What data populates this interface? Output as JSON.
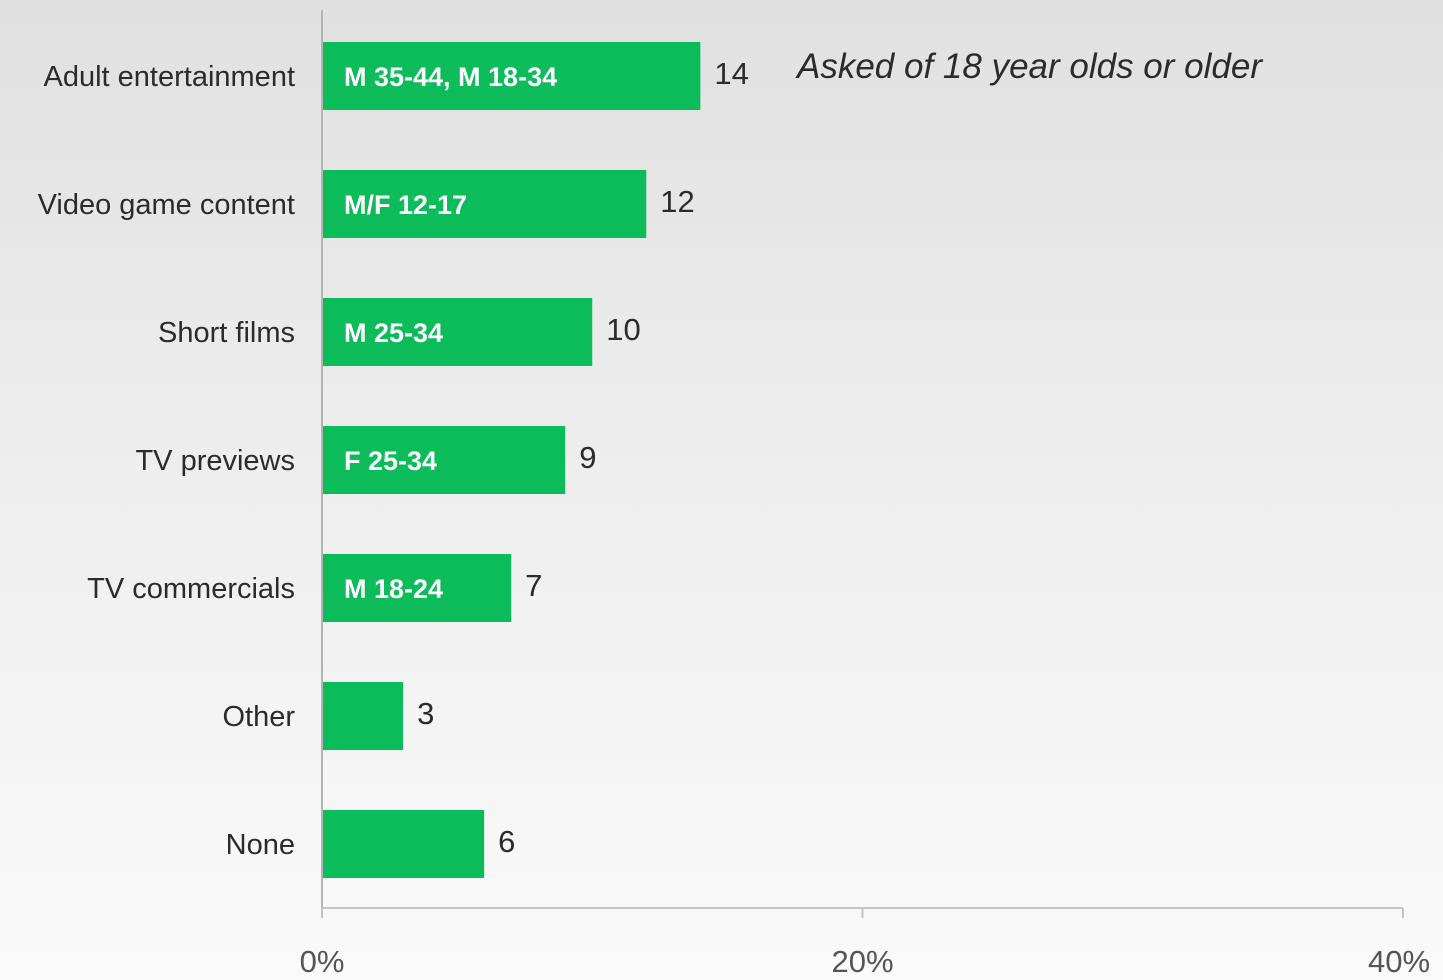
{
  "chart_data": {
    "type": "bar",
    "orientation": "horizontal",
    "categories": [
      "Adult entertainment",
      "Video game content",
      "Short films",
      "TV previews",
      "TV commercials",
      "Other",
      "None"
    ],
    "values": [
      14,
      12,
      10,
      9,
      7,
      3,
      6
    ],
    "bar_annotations": [
      "M 35-44, M 18-34",
      "M/F 12-17",
      "M 25-34",
      "F 25-34",
      "M 18-24",
      "",
      ""
    ],
    "x_ticks": [
      "0%",
      "20%",
      "40%"
    ],
    "xlim": [
      0,
      40
    ],
    "note": "Asked of 18 year olds or older",
    "bar_color": "#0cbb5a",
    "grid": false,
    "legend": false
  }
}
